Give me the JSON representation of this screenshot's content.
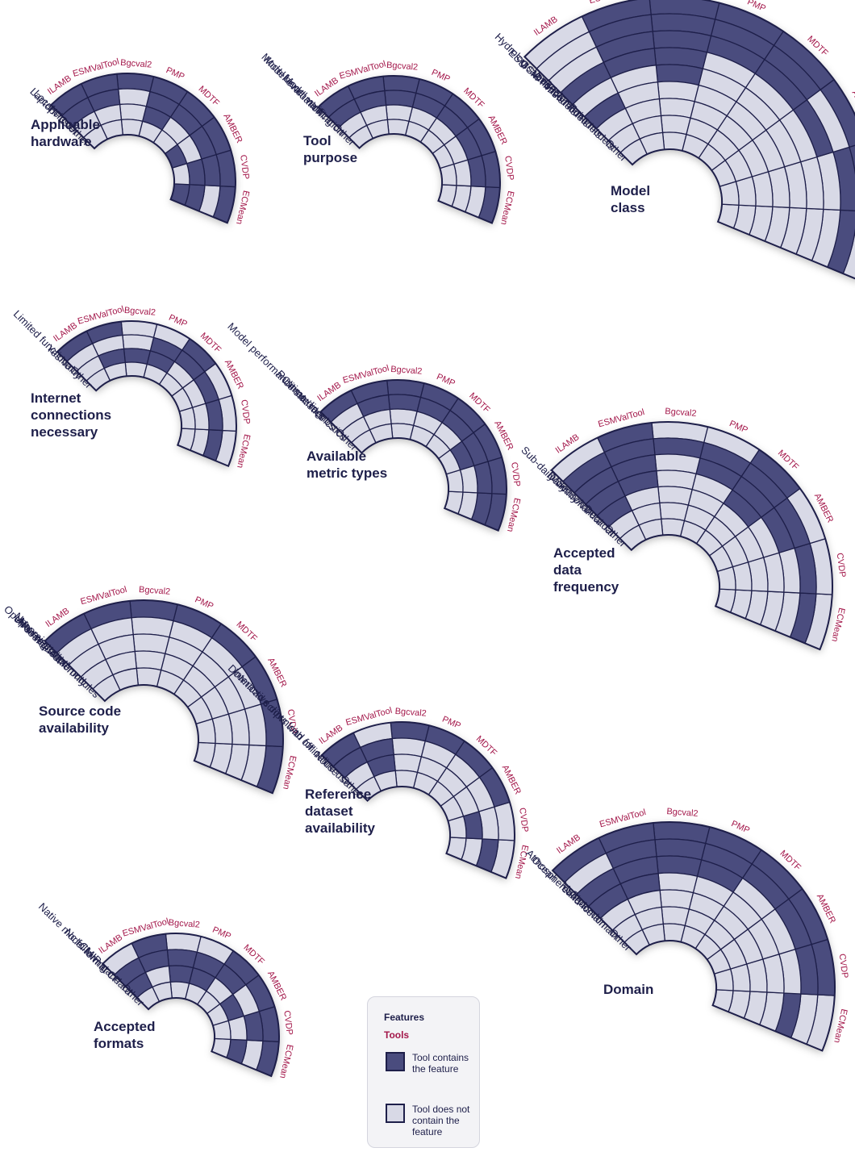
{
  "tools": [
    "ECMean",
    "CVDP",
    "AMBER",
    "MDTF",
    "PMP",
    "Bgcval2",
    "ESMValTool",
    "ILAMB"
  ],
  "colors": {
    "contains": "#4a4c7e",
    "absent": "#d8d9e6",
    "stroke": "#1e1f4a",
    "feature_text": "#1e1f4a",
    "tool_text": "#a3174a"
  },
  "legend": {
    "features_label": "Features",
    "tools_label": "Tools",
    "contains_label": "Tool contains the feature",
    "absent_label": "Tool does not contain the feature"
  },
  "panels": [
    {
      "id": "hardware",
      "title": [
        "Applicable",
        "hardware"
      ],
      "features": [
        "Laptop",
        "HPC",
        "Local cluster",
        "Other"
      ],
      "matrix": [
        [
          1,
          0,
          1,
          1
        ],
        [
          1,
          1,
          1,
          0
        ],
        [
          1,
          1,
          0,
          1
        ],
        [
          1,
          1,
          0,
          0
        ],
        [
          1,
          1,
          1,
          0
        ],
        [
          1,
          0,
          0,
          0
        ],
        [
          1,
          1,
          0,
          0
        ],
        [
          1,
          1,
          0,
          0
        ]
      ]
    },
    {
      "id": "purpose",
      "title": [
        "Tool",
        "purpose"
      ],
      "features": [
        "Model evaluation",
        "Model benchmarking",
        "Model verification",
        "Other"
      ],
      "matrix": [
        [
          1,
          0,
          0,
          0
        ],
        [
          1,
          1,
          0,
          0
        ],
        [
          1,
          1,
          0,
          0
        ],
        [
          1,
          1,
          0,
          0
        ],
        [
          1,
          1,
          0,
          0
        ],
        [
          1,
          1,
          0,
          0
        ],
        [
          1,
          1,
          0,
          0
        ],
        [
          1,
          1,
          0,
          0
        ]
      ]
    },
    {
      "id": "model_class",
      "title": [
        "Model",
        "class"
      ],
      "features": [
        "ESM",
        "GSM",
        "CTM",
        "Hydrological models",
        "Land models",
        "Sea-ice models",
        "Regional models",
        "Point models",
        "Other"
      ],
      "matrix": [
        [
          0,
          1,
          0,
          0,
          0,
          0,
          0,
          0,
          0
        ],
        [
          1,
          1,
          0,
          0,
          0,
          0,
          0,
          0,
          0
        ],
        [
          1,
          0,
          1,
          0,
          0,
          0,
          0,
          0,
          0
        ],
        [
          1,
          1,
          1,
          0,
          0,
          0,
          0,
          0,
          0
        ],
        [
          1,
          1,
          1,
          0,
          0,
          0,
          0,
          0,
          0
        ],
        [
          1,
          1,
          1,
          1,
          1,
          0,
          0,
          0,
          0
        ],
        [
          1,
          1,
          1,
          1,
          0,
          0,
          0,
          0,
          0
        ],
        [
          0,
          0,
          0,
          1,
          0,
          1,
          0,
          0,
          0
        ]
      ]
    },
    {
      "id": "internet",
      "title": [
        "Internet",
        "connections",
        "necessary"
      ],
      "features": [
        "Yes",
        "No",
        "Limited functionality",
        "Other"
      ],
      "matrix": [
        [
          0,
          1,
          0,
          0
        ],
        [
          0,
          1,
          0,
          0
        ],
        [
          0,
          1,
          0,
          0
        ],
        [
          1,
          1,
          0,
          0
        ],
        [
          0,
          1,
          1,
          0
        ],
        [
          0,
          0,
          1,
          0
        ],
        [
          1,
          0,
          1,
          0
        ],
        [
          1,
          0,
          0,
          0
        ]
      ]
    },
    {
      "id": "metrics",
      "title": [
        "Available",
        "metric types"
      ],
      "features": [
        "Model performance statistics",
        "Climate metrics",
        "Runtime diagnostics",
        "Other"
      ],
      "matrix": [
        [
          1,
          1,
          0,
          0
        ],
        [
          1,
          1,
          0,
          0
        ],
        [
          1,
          1,
          1,
          0
        ],
        [
          1,
          1,
          0,
          0
        ],
        [
          1,
          1,
          0,
          0
        ],
        [
          1,
          1,
          0,
          0
        ],
        [
          1,
          1,
          0,
          0
        ],
        [
          1,
          0,
          0,
          0
        ]
      ]
    },
    {
      "id": "frequency",
      "title": [
        "Accepted",
        "data",
        "frequency"
      ],
      "features": [
        "Sub-daily",
        "Daily",
        "Monthly",
        "Seasonal",
        "Annual",
        "Decadal",
        "Other"
      ],
      "matrix": [
        [
          0,
          1,
          0,
          0,
          0,
          0,
          0
        ],
        [
          0,
          1,
          0,
          0,
          0,
          0,
          0
        ],
        [
          0,
          1,
          1,
          0,
          0,
          0,
          0
        ],
        [
          1,
          1,
          1,
          1,
          0,
          0,
          0
        ],
        [
          0,
          1,
          1,
          0,
          0,
          0,
          0
        ],
        [
          0,
          1,
          0,
          0,
          0,
          0,
          0
        ],
        [
          1,
          1,
          1,
          1,
          0,
          0,
          0
        ],
        [
          0,
          1,
          1,
          1,
          1,
          0,
          0
        ]
      ]
    },
    {
      "id": "source",
      "title": [
        "Source code",
        "availability"
      ],
      "features": [
        "Open source",
        "Upon request",
        "After registration",
        "No: executable only",
        "No: preinstalled modules"
      ],
      "matrix": [
        [
          1,
          0,
          0,
          0,
          0
        ],
        [
          1,
          0,
          0,
          0,
          0
        ],
        [
          1,
          0,
          0,
          0,
          0
        ],
        [
          1,
          0,
          0,
          0,
          0
        ],
        [
          1,
          0,
          0,
          0,
          0
        ],
        [
          1,
          0,
          0,
          0,
          0
        ],
        [
          1,
          0,
          0,
          0,
          0
        ],
        [
          1,
          0,
          0,
          0,
          0
        ]
      ]
    },
    {
      "id": "reference",
      "title": [
        "Reference",
        "dataset",
        "availability"
      ],
      "features": [
        "No",
        "Download scripts with offline use",
        "Interactive download for online use",
        "Other"
      ],
      "matrix": [
        [
          0,
          1,
          0,
          0
        ],
        [
          0,
          0,
          1,
          0
        ],
        [
          1,
          0,
          0,
          0
        ],
        [
          1,
          0,
          0,
          0
        ],
        [
          1,
          0,
          0,
          0
        ],
        [
          1,
          0,
          0,
          0
        ],
        [
          0,
          1,
          1,
          0
        ],
        [
          1,
          1,
          0,
          0
        ]
      ]
    },
    {
      "id": "formats",
      "title": [
        "Accepted",
        "formats"
      ],
      "features": [
        "Native model format",
        "Nc following CF",
        "CMIP standard",
        "Other"
      ],
      "matrix": [
        [
          1,
          0,
          1,
          0
        ],
        [
          1,
          1,
          0,
          0
        ],
        [
          1,
          0,
          1,
          0
        ],
        [
          1,
          1,
          0,
          0
        ],
        [
          0,
          1,
          1,
          0
        ],
        [
          0,
          1,
          1,
          0
        ],
        [
          1,
          1,
          0,
          0
        ],
        [
          0,
          1,
          1,
          0
        ]
      ]
    },
    {
      "id": "domain",
      "title": [
        "Domain"
      ],
      "features": [
        "Ocean",
        "Atmosphere",
        "Land",
        "Sea-ice",
        "Multi-domain",
        "Cross domain",
        "Other"
      ],
      "matrix": [
        [
          0,
          0,
          1,
          0,
          0,
          0,
          0
        ],
        [
          1,
          1,
          0,
          0,
          0,
          0,
          0
        ],
        [
          1,
          1,
          0,
          0,
          0,
          0,
          0
        ],
        [
          1,
          1,
          0,
          0,
          0,
          0,
          0
        ],
        [
          1,
          1,
          1,
          0,
          0,
          0,
          0
        ],
        [
          1,
          1,
          1,
          0,
          0,
          0,
          0
        ],
        [
          1,
          1,
          1,
          1,
          0,
          0,
          0
        ],
        [
          1,
          0,
          1,
          1,
          0,
          0,
          0
        ]
      ]
    }
  ]
}
